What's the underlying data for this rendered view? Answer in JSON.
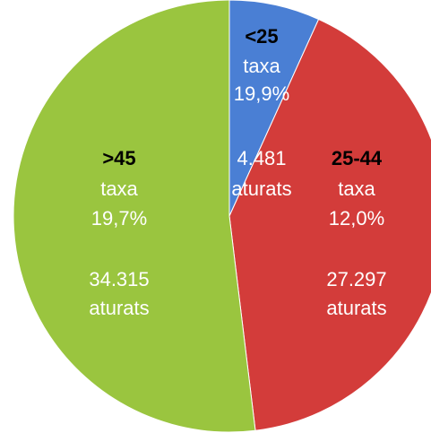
{
  "chart_data": {
    "type": "pie",
    "categories": [
      "<25",
      "25-44",
      ">45"
    ],
    "values": [
      4481,
      27297,
      34315
    ],
    "value_labels": [
      "4.481",
      "27.297",
      "34.315"
    ],
    "rate_word": "taxa",
    "rate_labels": [
      "19,9%",
      "12,0%",
      "19,7%"
    ],
    "count_word": "aturats",
    "colors": [
      "#4a7fd4",
      "#d33c3a",
      "#9ac53f"
    ]
  }
}
